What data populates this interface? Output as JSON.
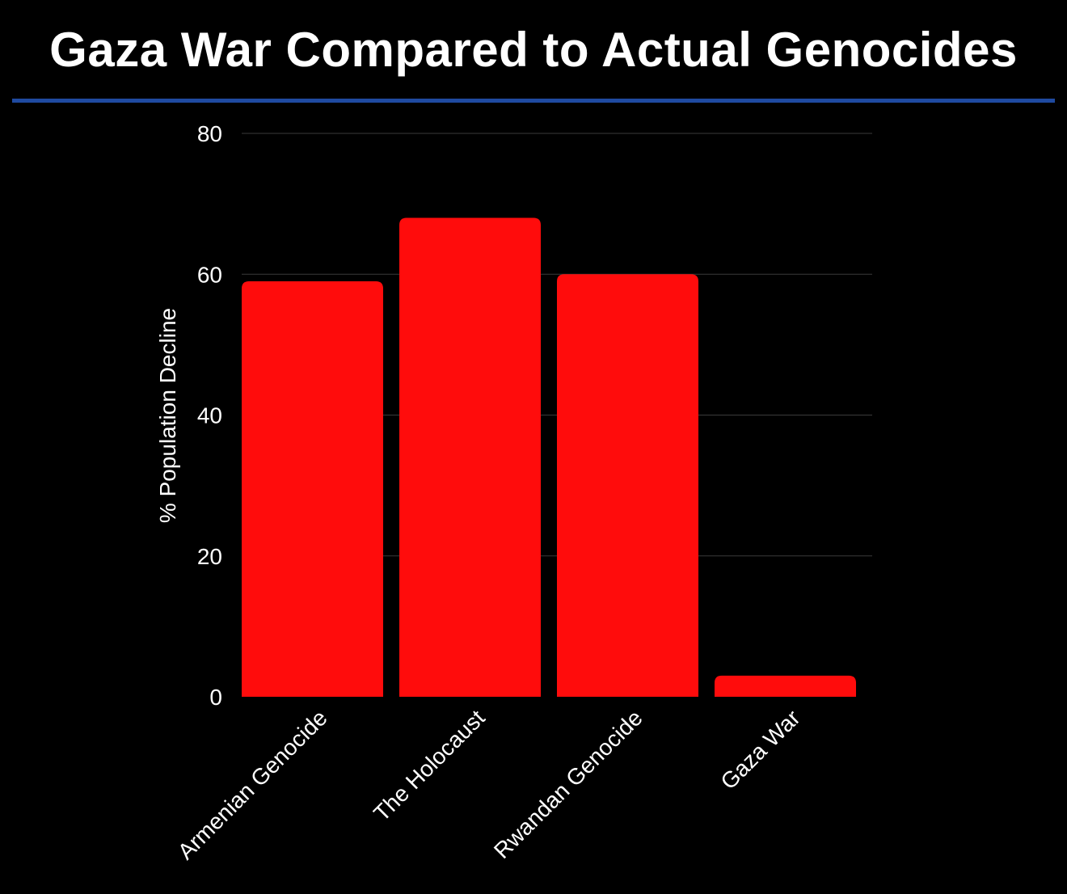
{
  "chart_data": {
    "type": "bar",
    "title": "Gaza War Compared to Actual Genocides",
    "xlabel": "",
    "ylabel": "% Population Decline",
    "categories": [
      "Armenian Genocide",
      "The Holocaust",
      "Rwandan Genocide",
      "Gaza War"
    ],
    "values": [
      59,
      68,
      60,
      3
    ],
    "ylim": [
      0,
      80
    ],
    "yticks": [
      0,
      20,
      40,
      60,
      80
    ],
    "grid": true,
    "legend": "none",
    "bar_color": "#ff0c0c",
    "title_rule_color": "#1f4aa0",
    "gridline_color": "#3a3a3a",
    "background": "#000000"
  }
}
